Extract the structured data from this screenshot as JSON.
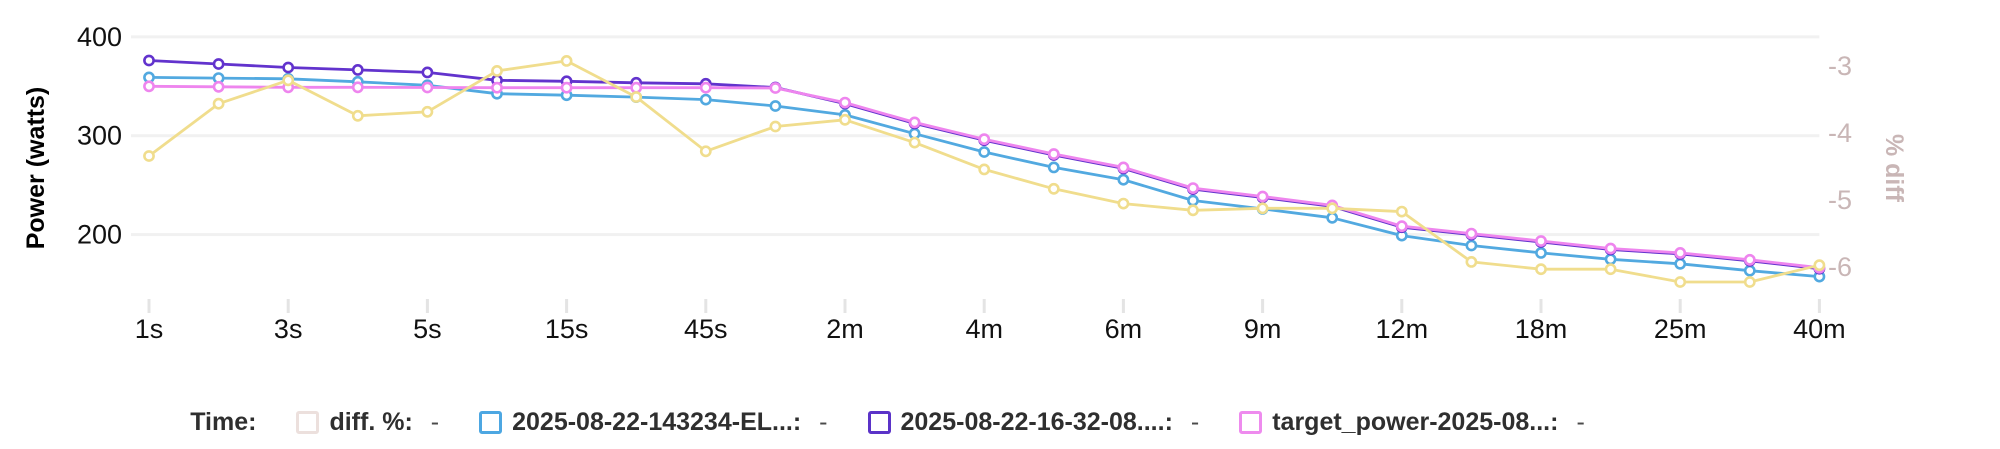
{
  "chart_data": {
    "type": "line",
    "title": "",
    "x_tick_labels": [
      "1s",
      "3s",
      "5s",
      "15s",
      "45s",
      "2m",
      "4m",
      "6m",
      "9m",
      "12m",
      "18m",
      "25m",
      "40m"
    ],
    "x_points_count": 25,
    "left_axis": {
      "label": "Power (watts)",
      "ticks": [
        400,
        300,
        200
      ],
      "range": [
        144,
        417
      ]
    },
    "right_axis": {
      "label": "% diff",
      "ticks": [
        -3,
        -4,
        -5,
        -6
      ],
      "range": [
        -6.34,
        -2.31
      ]
    },
    "grid": "horizontal-only",
    "legend_position": "bottom",
    "series": [
      {
        "name": "diff. %",
        "axis": "right",
        "color": "#f0dd8d",
        "values": [
          -4.34,
          -3.56,
          -3.21,
          -3.74,
          -3.68,
          -3.07,
          -2.92,
          -3.46,
          -4.27,
          -3.9,
          -3.8,
          -4.14,
          -4.54,
          -4.83,
          -5.05,
          -5.15,
          -5.12,
          -5.12,
          -5.17,
          -5.92,
          -6.03,
          -6.03,
          -6.22,
          -6.22,
          -5.97
        ]
      },
      {
        "name": "2025-08-22-143234-EL...",
        "axis": "left",
        "color": "#52a9e0",
        "values": [
          359,
          358.3,
          357.5,
          354.5,
          351,
          342.5,
          341,
          339,
          336.5,
          330,
          321,
          302,
          283.5,
          268,
          255.5,
          234.5,
          226,
          217,
          199,
          189,
          181.5,
          175,
          170.5,
          163.5,
          157.5
        ]
      },
      {
        "name": "2025-08-22-16-32-08....",
        "axis": "left",
        "color": "#6233cd",
        "values": [
          376,
          372.5,
          369,
          366.5,
          364,
          356,
          355,
          353.5,
          352.5,
          348.8,
          332.5,
          312.5,
          295.5,
          280.5,
          267,
          246,
          237.5,
          228.5,
          207.5,
          200,
          192.5,
          185,
          180.5,
          173.5,
          165.5
        ]
      },
      {
        "name": "target_power-2025-08...",
        "axis": "left",
        "color": "#ee85ee",
        "values": [
          350,
          349.5,
          349,
          349,
          348.8,
          348.5,
          348.5,
          348.5,
          348.5,
          348.2,
          333.5,
          313.5,
          296.5,
          281.5,
          268,
          247,
          238.5,
          229.5,
          208.5,
          201,
          193.5,
          186,
          181.5,
          174.5,
          166.5
        ]
      }
    ],
    "colors": {
      "grid": "#f1f1f1",
      "tick_mark": "#e4e4e4",
      "left_axis_text": "#111111",
      "right_axis_text": "#c9b6b6"
    }
  },
  "legend": {
    "prefix": "Time:",
    "items": [
      {
        "label": "diff. %:",
        "value": "-",
        "swatch_color": "#ece0dd"
      },
      {
        "label": "2025-08-22-143234-EL...:",
        "value": "-",
        "swatch_color": "#4da7e2"
      },
      {
        "label": "2025-08-22-16-32-08....:",
        "value": "-",
        "swatch_color": "#5b33c8"
      },
      {
        "label": "target_power-2025-08...:",
        "value": "-",
        "swatch_color": "#ee8bee"
      }
    ]
  }
}
